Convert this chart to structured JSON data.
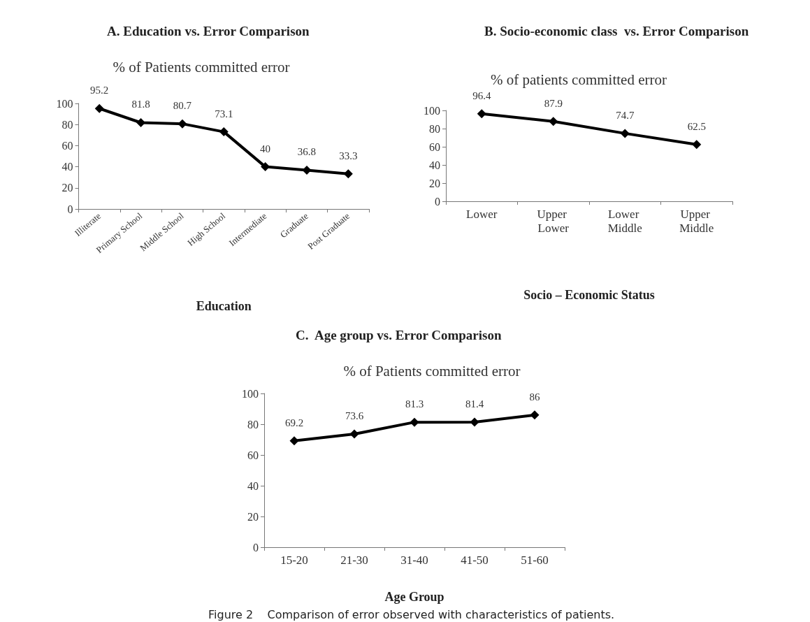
{
  "chart_data": [
    {
      "type": "line",
      "title": "A. Education vs. Error Comparison",
      "subtitle": "% of Patients committed error",
      "xlabel": "Education",
      "categories": [
        "Illiterate",
        "Primary School",
        "Middle School",
        "High School",
        "Intermediate",
        "Graduate",
        "Post Graduate"
      ],
      "series": [
        {
          "color": "#000000",
          "values": [
            95.2,
            81.8,
            80.7,
            73.1,
            40,
            36.8,
            33.3
          ]
        }
      ],
      "ylim": [
        0,
        100
      ],
      "yticks": [
        0,
        20,
        40,
        60,
        80,
        100
      ],
      "grid": false,
      "marker": "diamond",
      "line_style": "solid",
      "data_labels": true
    },
    {
      "type": "line",
      "title": "B. Socio-economic class  vs. Error Comparison",
      "subtitle": "% of patients committed error",
      "xlabel": "Socio – Economic Status",
      "categories": [
        "Lower",
        "Upper Lower",
        "Lower Middle",
        "Upper Middle"
      ],
      "series": [
        {
          "color": "#000000",
          "values": [
            96.4,
            87.9,
            74.7,
            62.5
          ]
        }
      ],
      "ylim": [
        0,
        100
      ],
      "yticks": [
        0,
        20,
        40,
        60,
        80,
        100
      ],
      "grid": false,
      "marker": "diamond",
      "line_style": "solid",
      "data_labels": true
    },
    {
      "type": "line",
      "title": "C.  Age group vs. Error Comparison",
      "subtitle": "% of Patients committed error",
      "xlabel": "Age Group",
      "categories": [
        "15-20",
        "21-30",
        "31-40",
        "41-50",
        "51-60"
      ],
      "series": [
        {
          "color": "#000000",
          "values": [
            69.2,
            73.6,
            81.3,
            81.4,
            86
          ]
        }
      ],
      "ylim": [
        0,
        100
      ],
      "yticks": [
        0,
        20,
        40,
        60,
        80,
        100
      ],
      "grid": false,
      "marker": "diamond",
      "line_style": "solid",
      "data_labels": true,
      "annotations": [
        "Figure 2    Comparison of error observed with characteristics of patients."
      ]
    }
  ]
}
